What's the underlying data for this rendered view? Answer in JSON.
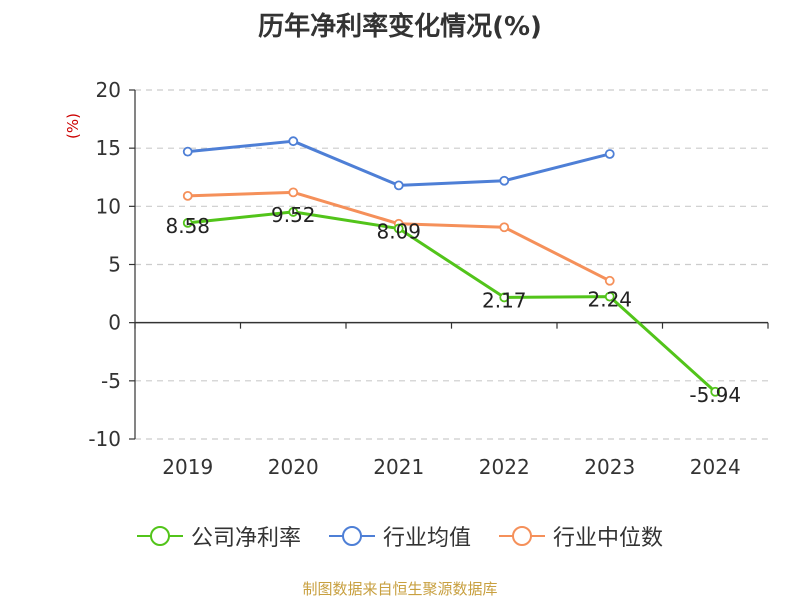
{
  "chart_data": {
    "type": "line",
    "title": "历年净利率变化情况(%)",
    "ylabel": "(%)",
    "xlabel": "",
    "categories": [
      "2019",
      "2020",
      "2021",
      "2022",
      "2023",
      "2024"
    ],
    "ylim": [
      -10,
      20
    ],
    "yticks": [
      20,
      15,
      10,
      5,
      0,
      -5,
      -10
    ],
    "grid": true,
    "legend_position": "bottom",
    "series": [
      {
        "name": "公司净利率",
        "color": "#52c41a",
        "values": [
          8.58,
          9.52,
          8.09,
          2.17,
          2.24,
          -5.94
        ],
        "labels": [
          "8.58",
          "9.52",
          "8.09",
          "2.17",
          "2.24",
          "-5.94"
        ]
      },
      {
        "name": "行业均值",
        "color": "#4e7fd6",
        "values": [
          14.7,
          15.6,
          11.8,
          12.2,
          14.5,
          null
        ]
      },
      {
        "name": "行业中位数",
        "color": "#f5905a",
        "values": [
          10.9,
          11.2,
          8.5,
          8.2,
          3.6,
          null
        ]
      }
    ]
  },
  "footer": "制图数据来自恒生聚源数据库"
}
